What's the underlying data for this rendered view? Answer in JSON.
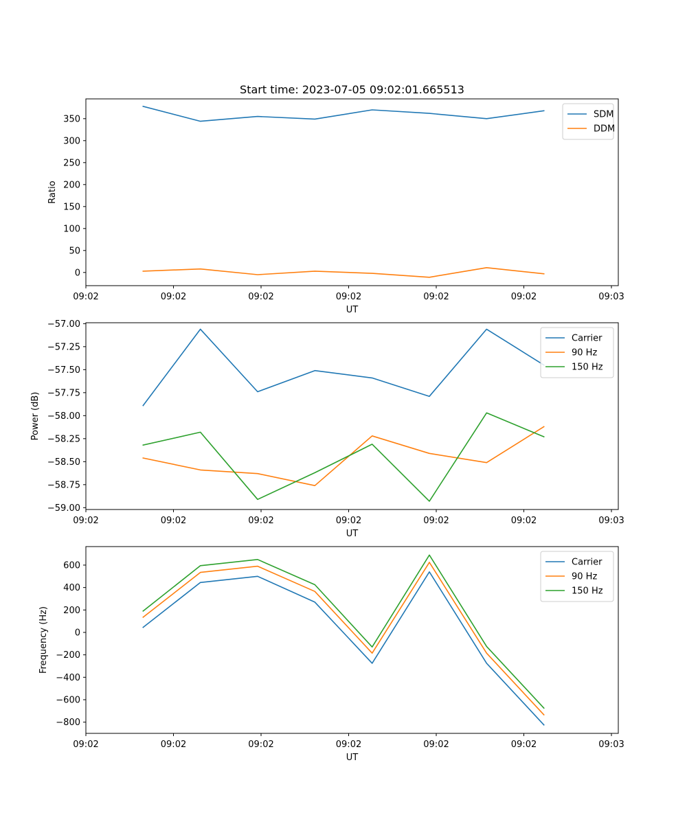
{
  "figure": {
    "title": "Start time: 2023-07-05 09:02:01.665513"
  },
  "colors": {
    "blue": "#1f77b4",
    "orange": "#ff7f0e",
    "green": "#2ca02c"
  },
  "chart_data": [
    {
      "type": "line",
      "title": "Start time: 2023-07-05 09:02:01.665513",
      "xlabel": "UT",
      "ylabel": "Ratio",
      "x_index": [
        1,
        2,
        3,
        4,
        5,
        6,
        7,
        8
      ],
      "xlim": [
        0,
        9.3
      ],
      "x_ticks": [
        0,
        1.53,
        3.06,
        4.59,
        6.12,
        7.65,
        9.18
      ],
      "x_tick_labels": [
        "09:02",
        "09:02",
        "09:02",
        "09:02",
        "09:02",
        "09:02",
        "09:03"
      ],
      "ylim": [
        -30,
        395
      ],
      "y_ticks": [
        0,
        50,
        100,
        150,
        200,
        250,
        300,
        350
      ],
      "y_tick_labels": [
        "0",
        "50",
        "100",
        "150",
        "200",
        "250",
        "300",
        "350"
      ],
      "legend_loc": "upper right",
      "series": [
        {
          "name": "SDM",
          "color": "#1f77b4",
          "values": [
            378,
            344,
            355,
            349,
            370,
            362,
            350,
            368
          ]
        },
        {
          "name": "DDM",
          "color": "#ff7f0e",
          "values": [
            3,
            8,
            -5,
            3,
            -2,
            -11,
            11,
            -3
          ]
        }
      ]
    },
    {
      "type": "line",
      "title": "",
      "xlabel": "UT",
      "ylabel": "Power (dB)",
      "x_index": [
        1,
        2,
        3,
        4,
        5,
        6,
        7,
        8
      ],
      "xlim": [
        0,
        9.3
      ],
      "x_ticks": [
        0,
        1.53,
        3.06,
        4.59,
        6.12,
        7.65,
        9.18
      ],
      "x_tick_labels": [
        "09:02",
        "09:02",
        "09:02",
        "09:02",
        "09:02",
        "09:02",
        "09:03"
      ],
      "ylim": [
        -59.02,
        -56.99
      ],
      "y_ticks": [
        -59.0,
        -58.75,
        -58.5,
        -58.25,
        -58.0,
        -57.75,
        -57.5,
        -57.25,
        -57.0
      ],
      "y_tick_labels": [
        "−59.00",
        "−58.75",
        "−58.50",
        "−58.25",
        "−58.00",
        "−57.75",
        "−57.50",
        "−57.25",
        "−57.00"
      ],
      "legend_loc": "upper right",
      "series": [
        {
          "name": "Carrier",
          "color": "#1f77b4",
          "values": [
            -57.89,
            -57.06,
            -57.74,
            -57.51,
            -57.59,
            -57.79,
            -57.06,
            -57.45
          ]
        },
        {
          "name": "90 Hz",
          "color": "#ff7f0e",
          "values": [
            -58.46,
            -58.59,
            -58.63,
            -58.76,
            -58.22,
            -58.41,
            -58.51,
            -58.12
          ]
        },
        {
          "name": "150 Hz",
          "color": "#2ca02c",
          "values": [
            -58.32,
            -58.18,
            -58.91,
            -58.62,
            -58.31,
            -58.93,
            -57.97,
            -58.23
          ]
        }
      ]
    },
    {
      "type": "line",
      "title": "",
      "xlabel": "UT",
      "ylabel": "Frequency (Hz)",
      "x_index": [
        1,
        2,
        3,
        4,
        5,
        6,
        7,
        8
      ],
      "xlim": [
        0,
        9.3
      ],
      "x_ticks": [
        0,
        1.53,
        3.06,
        4.59,
        6.12,
        7.65,
        9.18
      ],
      "x_tick_labels": [
        "09:02",
        "09:02",
        "09:02",
        "09:02",
        "09:02",
        "09:02",
        "09:03"
      ],
      "ylim": [
        -900,
        765
      ],
      "y_ticks": [
        -800,
        -600,
        -400,
        -200,
        0,
        200,
        400,
        600
      ],
      "y_tick_labels": [
        "−800",
        "−600",
        "−400",
        "−200",
        "0",
        "200",
        "400",
        "600"
      ],
      "legend_loc": "upper right",
      "series": [
        {
          "name": "Carrier",
          "color": "#1f77b4",
          "values": [
            45,
            445,
            500,
            270,
            -275,
            540,
            -275,
            -825
          ]
        },
        {
          "name": "90 Hz",
          "color": "#ff7f0e",
          "values": [
            135,
            535,
            590,
            365,
            -185,
            625,
            -185,
            -735
          ]
        },
        {
          "name": "150 Hz",
          "color": "#2ca02c",
          "values": [
            190,
            595,
            650,
            425,
            -130,
            690,
            -125,
            -675
          ]
        }
      ]
    }
  ]
}
